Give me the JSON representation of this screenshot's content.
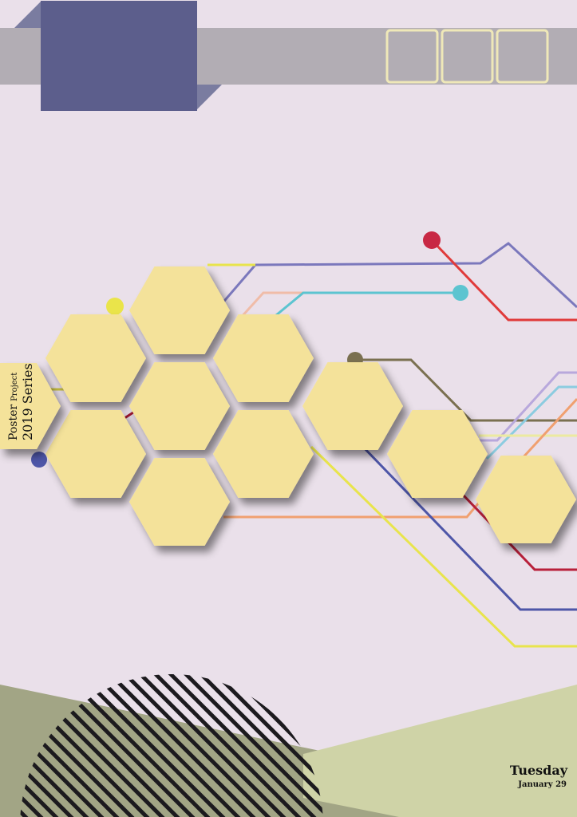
{
  "label": {
    "line1_big": "Poster",
    "line1_small": "Project",
    "line2": "2019 Series"
  },
  "date": {
    "day": "Tuesday",
    "date": "January 29"
  },
  "colors": {
    "background": "#eae0ea",
    "header_bar": "#b2adb4",
    "header_block": "#5c5e8c",
    "hexagon": "#f4e29a",
    "ground_dark": "#a2a585",
    "ground_light": "#cfd3a7",
    "stripes": "#1c1a1e"
  }
}
